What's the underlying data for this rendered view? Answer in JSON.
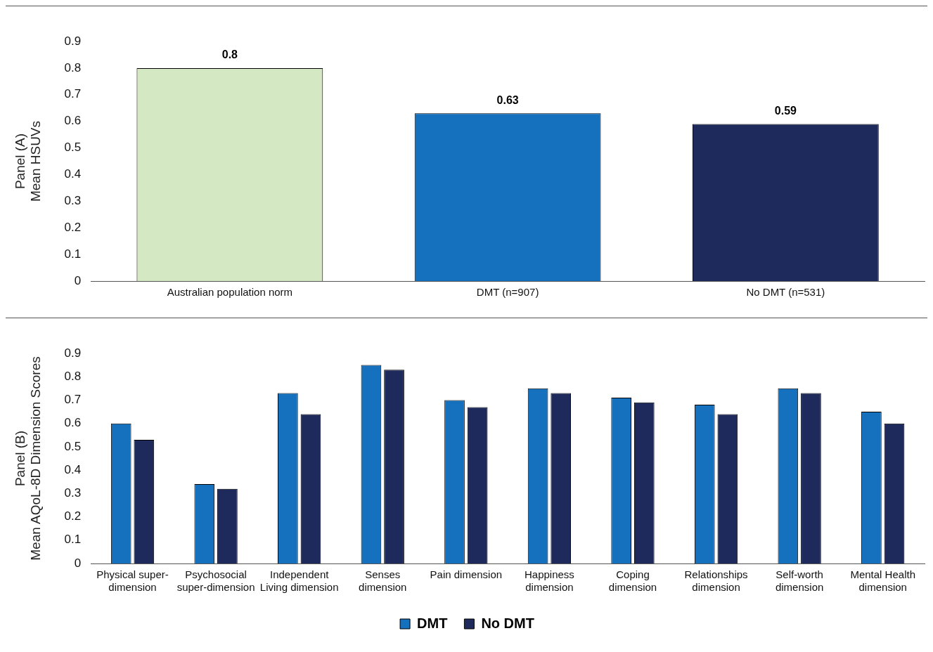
{
  "chart_data": [
    {
      "type": "bar",
      "ylabel": "Panel (A)\nMean HSUVs",
      "categories": [
        "Australian population norm",
        "DMT (n=907)",
        "No DMT (n=531)"
      ],
      "values": [
        0.8,
        0.63,
        0.59
      ],
      "colors": [
        "#d3e8c3",
        "#1570bd",
        "#1f2a5c"
      ],
      "ylim": [
        0,
        0.9
      ],
      "yticks": [
        0,
        0.1,
        0.2,
        0.3,
        0.4,
        0.5,
        0.6,
        0.7,
        0.8,
        0.9
      ],
      "grid": false,
      "legend": false,
      "data_labels": true
    },
    {
      "type": "bar",
      "ylabel": "Panel (B)\nMean AQoL-8D Dimension Scores",
      "categories": [
        "Physical super-\ndimension",
        "Psychosocial\nsuper-dimension",
        "Independent\nLiving dimension",
        "Senses\ndimension",
        "Pain dimension",
        "Happiness\ndimension",
        "Coping\ndimension",
        "Relationships\ndimension",
        "Self-worth\ndimension",
        "Mental Health\ndimension"
      ],
      "series": [
        {
          "name": "DMT",
          "color": "#1570bd",
          "values": [
            0.6,
            0.34,
            0.73,
            0.85,
            0.7,
            0.75,
            0.71,
            0.68,
            0.75,
            0.65
          ]
        },
        {
          "name": "No DMT",
          "color": "#1f2a5c",
          "values": [
            0.53,
            0.32,
            0.64,
            0.83,
            0.67,
            0.73,
            0.69,
            0.64,
            0.73,
            0.6
          ]
        }
      ],
      "ylim": [
        0,
        0.9
      ],
      "yticks": [
        0,
        0.1,
        0.2,
        0.3,
        0.4,
        0.5,
        0.6,
        0.7,
        0.8,
        0.9
      ],
      "grid": false,
      "legend": "bottom"
    }
  ]
}
